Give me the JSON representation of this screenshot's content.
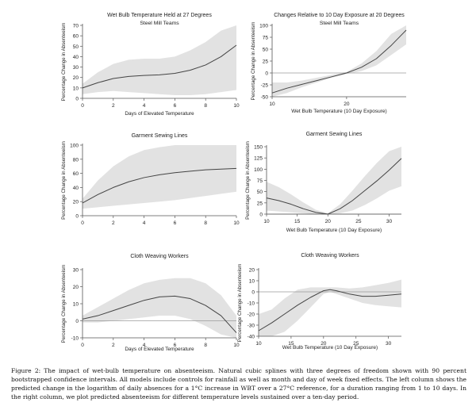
{
  "caption": {
    "label": "Figure 2:",
    "text": "The impact of wet-bulb temperature on absenteeism. Natural cubic splines with three degrees of freedom shown with 90 percent bootstrapped confidence intervals. All models include controls for rainfall as well as month and day of week fixed effects. The left column shows the predicted change in the logarithm of daily absences for a 1°C increase in WBT over a 27°C reference, for a duration ranging from 1 to 10 days. In the right column, we plot predicted absenteeism for different temperature levels sustained over a ten-day period."
  },
  "chart_data": [
    {
      "id": "steel-days",
      "type": "line",
      "title": "Wet Bulb Temperature Held at 27 Degrees",
      "subtitle": "Steel Mill Teams",
      "xlabel": "Days of Elevated Temperature",
      "ylabel": "Percentage Change in Absenteeism",
      "xlim": [
        0,
        10
      ],
      "ylim": [
        0,
        70
      ],
      "xticks": [
        0,
        2,
        4,
        6,
        8,
        10
      ],
      "yticks": [
        0,
        10,
        20,
        30,
        40,
        50,
        60,
        70
      ],
      "x": [
        0,
        1,
        2,
        3,
        4,
        5,
        6,
        7,
        8,
        9,
        10
      ],
      "y": [
        10,
        15,
        19,
        21,
        22,
        22.5,
        24,
        27,
        32,
        40,
        51
      ],
      "lower": [
        4,
        6,
        7,
        6,
        5,
        4,
        3,
        3,
        4,
        6,
        8
      ],
      "upper": [
        14,
        25,
        33,
        37,
        38,
        38,
        40,
        46,
        54,
        65,
        70
      ],
      "reference_line": null
    },
    {
      "id": "steel-temp",
      "type": "line",
      "title": "Changes Relative to 10 Day Exposure at 20 Degrees",
      "subtitle": "Steel Mill Teams",
      "xlabel": "Wet Bulb Temperature (10 Day Exposure)",
      "ylabel": "Percentage Change in Absenteeism",
      "xlim": [
        10,
        28
      ],
      "ylim": [
        -50,
        100
      ],
      "xticks": [
        10,
        20
      ],
      "yticks": [
        -50,
        -25,
        0,
        25,
        50,
        75,
        100
      ],
      "x": [
        10,
        12,
        14,
        16,
        18,
        20,
        22,
        24,
        26,
        28
      ],
      "y": [
        -42,
        -32,
        -24,
        -16,
        -8,
        0,
        12,
        30,
        58,
        90
      ],
      "lower": [
        -60,
        -42,
        -30,
        -20,
        -10,
        -2,
        4,
        16,
        38,
        60
      ],
      "upper": [
        -20,
        -20,
        -16,
        -10,
        -4,
        2,
        20,
        46,
        82,
        105
      ],
      "reference_line": 0
    },
    {
      "id": "garment-days",
      "type": "line",
      "title": "Garment Sewing Lines",
      "subtitle": "",
      "xlabel": "",
      "ylabel": "Percentage Change in Absenteeism",
      "xlim": [
        0,
        10
      ],
      "ylim": [
        0,
        100
      ],
      "xticks": [
        0,
        2,
        4,
        6,
        8,
        10
      ],
      "yticks": [
        0,
        20,
        40,
        60,
        80,
        100
      ],
      "x": [
        0,
        1,
        2,
        3,
        4,
        5,
        6,
        7,
        8,
        9,
        10
      ],
      "y": [
        18,
        30,
        40,
        48,
        54,
        58,
        61,
        63,
        65,
        66,
        67
      ],
      "lower": [
        10,
        12,
        14,
        16,
        18,
        20,
        22,
        25,
        28,
        31,
        34
      ],
      "upper": [
        24,
        50,
        70,
        84,
        93,
        97,
        100,
        100,
        100,
        100,
        100
      ],
      "reference_line": null
    },
    {
      "id": "garment-temp",
      "type": "line",
      "title": "Garment Sewing Lines",
      "subtitle": "",
      "xlabel": "Wet Bulb Temperature (10 Day Exposure)",
      "ylabel": "Percentage Change in Absenteeism",
      "xlim": [
        10,
        32
      ],
      "ylim": [
        0,
        150
      ],
      "xticks": [
        10,
        15,
        20,
        25,
        30
      ],
      "yticks": [
        0,
        25,
        50,
        75,
        100,
        125,
        150
      ],
      "x": [
        10,
        12,
        14,
        16,
        18,
        20,
        22,
        24,
        26,
        28,
        30,
        32
      ],
      "y": [
        36,
        30,
        22,
        12,
        4,
        0,
        12,
        30,
        52,
        74,
        98,
        124
      ],
      "lower": [
        8,
        6,
        4,
        2,
        0,
        -2,
        2,
        8,
        20,
        35,
        52,
        62
      ],
      "upper": [
        72,
        60,
        44,
        26,
        10,
        2,
        22,
        52,
        84,
        114,
        140,
        150
      ],
      "reference_line": 0
    },
    {
      "id": "cloth-days",
      "type": "line",
      "title": "Cloth Weaving Workers",
      "subtitle": "",
      "xlabel": "Days of Elevated Temperature",
      "ylabel": "Percentage Change in Absenteeism",
      "xlim": [
        0,
        10
      ],
      "ylim": [
        -10,
        30
      ],
      "xticks": [
        0,
        2,
        4,
        6,
        8,
        10
      ],
      "yticks": [
        -10,
        0,
        10,
        20,
        30
      ],
      "x": [
        0,
        1,
        2,
        3,
        4,
        5,
        6,
        7,
        8,
        9,
        10
      ],
      "y": [
        1,
        3,
        6,
        9,
        12,
        14,
        14.5,
        13,
        9,
        3,
        -7
      ],
      "lower": [
        -1,
        -1,
        0,
        1,
        2,
        3,
        3,
        1,
        -3,
        -8,
        -10
      ],
      "upper": [
        3,
        8,
        13,
        18,
        22,
        24,
        25,
        25,
        22,
        15,
        3
      ],
      "reference_line": 0
    },
    {
      "id": "cloth-temp",
      "type": "line",
      "title": "Cloth Weaving Workers",
      "subtitle": "",
      "xlabel": "Wet Bulb Temperature (10 Day Exposure)",
      "ylabel": "Percentage Change in Absenteeism",
      "xlim": [
        10,
        32
      ],
      "ylim": [
        -40,
        20
      ],
      "xticks": [
        10,
        15,
        20,
        25,
        30
      ],
      "yticks": [
        -40,
        -30,
        -20,
        -10,
        0,
        10,
        20
      ],
      "x": [
        10,
        12,
        14,
        16,
        18,
        20,
        21,
        22,
        24,
        26,
        28,
        30,
        32
      ],
      "y": [
        -35,
        -28,
        -20,
        -12,
        -5,
        1,
        2,
        1,
        -2,
        -4,
        -4,
        -3,
        -2
      ],
      "lower": [
        -40,
        -40,
        -36,
        -26,
        -14,
        -2,
        0,
        -2,
        -6,
        -10,
        -12,
        -13,
        -14
      ],
      "upper": [
        -20,
        -16,
        -6,
        2,
        4,
        4,
        4,
        4,
        3,
        4,
        6,
        8,
        11
      ],
      "reference_line": 0
    }
  ]
}
